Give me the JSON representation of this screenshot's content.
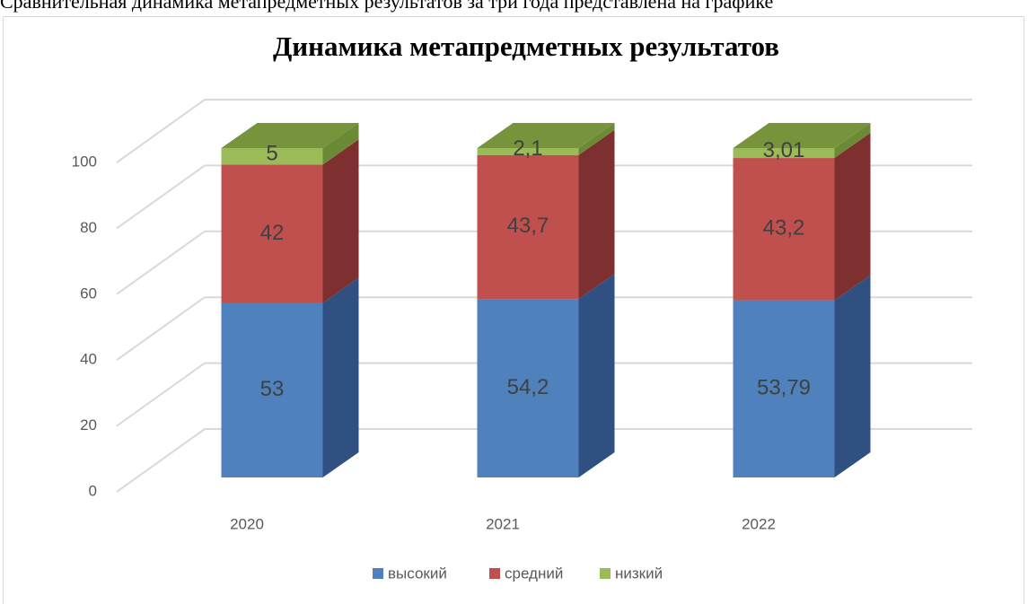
{
  "caption": "Сравнительная динамика метапредметных результатов за три года представлена на графике",
  "chart_data": {
    "type": "bar3d_stacked",
    "title": "Динамика метапредметных результатов",
    "categories": [
      "2020",
      "2021",
      "2022"
    ],
    "series": [
      {
        "name": "высокий",
        "color": "#4f81bd",
        "side_color": "#2f5080",
        "top_color": "#6f97cc",
        "values": [
          53,
          54.2,
          53.79
        ],
        "value_labels": [
          "53",
          "54,2",
          "53,79"
        ]
      },
      {
        "name": "средний",
        "color": "#c0504d",
        "side_color": "#7d302f",
        "top_color": "#d07572",
        "values": [
          42,
          43.7,
          43.2
        ],
        "value_labels": [
          "42",
          "43,7",
          "43,2"
        ]
      },
      {
        "name": "низкий",
        "color": "#9bbb59",
        "side_color": "#6a8a35",
        "top_color": "#77933c",
        "values": [
          5,
          2.1,
          3.01
        ],
        "value_labels": [
          "5",
          "2,1",
          "3,01"
        ]
      }
    ],
    "ylim": [
      0,
      100
    ],
    "yticks": [
      0,
      20,
      40,
      60,
      80,
      100
    ],
    "grid": true,
    "legend": "bottom"
  }
}
